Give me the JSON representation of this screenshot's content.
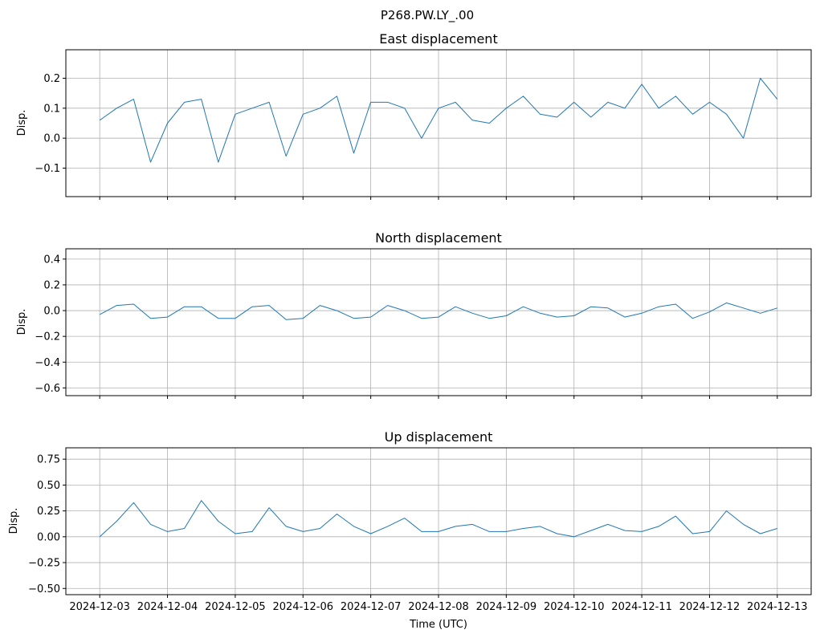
{
  "figure": {
    "suptitle": "P268.PW.LY_.00",
    "xlabel": "Time (UTC)"
  },
  "chart_data": [
    {
      "type": "line",
      "title": "East displacement",
      "ylabel": "Disp.",
      "xlim": [
        "2024-12-02T12:00",
        "2024-12-13T12:00"
      ],
      "ylim": [
        -0.195,
        0.295
      ],
      "yticks": [
        -0.1,
        0.0,
        0.1,
        0.2
      ],
      "ytick_labels": [
        "−0.1",
        "0.0",
        "0.1",
        "0.2"
      ],
      "xtick_labels": [],
      "grid": true,
      "series": [
        {
          "color": "#1f77b4",
          "x": [
            "2024-12-03T00:00",
            "2024-12-03T06:00",
            "2024-12-03T12:00",
            "2024-12-03T18:00",
            "2024-12-04T00:00",
            "2024-12-04T06:00",
            "2024-12-04T12:00",
            "2024-12-04T18:00",
            "2024-12-05T00:00",
            "2024-12-05T06:00",
            "2024-12-05T12:00",
            "2024-12-05T18:00",
            "2024-12-06T00:00",
            "2024-12-06T06:00",
            "2024-12-06T12:00",
            "2024-12-06T18:00",
            "2024-12-07T00:00",
            "2024-12-07T06:00",
            "2024-12-07T12:00",
            "2024-12-07T18:00",
            "2024-12-08T00:00",
            "2024-12-08T06:00",
            "2024-12-08T12:00",
            "2024-12-08T18:00",
            "2024-12-09T00:00",
            "2024-12-09T06:00",
            "2024-12-09T12:00",
            "2024-12-09T18:00",
            "2024-12-10T00:00",
            "2024-12-10T06:00",
            "2024-12-10T12:00",
            "2024-12-10T18:00",
            "2024-12-11T00:00",
            "2024-12-11T06:00",
            "2024-12-11T12:00",
            "2024-12-11T18:00",
            "2024-12-12T00:00",
            "2024-12-12T06:00",
            "2024-12-12T12:00",
            "2024-12-12T18:00",
            "2024-12-13T00:00"
          ],
          "values": [
            0.06,
            0.1,
            0.13,
            -0.08,
            0.05,
            0.12,
            0.13,
            -0.08,
            0.08,
            0.1,
            0.12,
            -0.06,
            0.08,
            0.1,
            0.14,
            -0.05,
            0.12,
            0.12,
            0.1,
            0.0,
            0.1,
            0.12,
            0.06,
            0.05,
            0.1,
            0.14,
            0.08,
            0.07,
            0.12,
            0.07,
            0.12,
            0.1,
            0.18,
            0.1,
            0.14,
            0.08,
            0.12,
            0.08,
            0.0,
            0.2,
            0.13
          ]
        }
      ]
    },
    {
      "type": "line",
      "title": "North displacement",
      "ylabel": "Disp.",
      "xlim": [
        "2024-12-02T12:00",
        "2024-12-13T12:00"
      ],
      "ylim": [
        -0.66,
        0.48
      ],
      "yticks": [
        -0.6,
        -0.4,
        -0.2,
        0.0,
        0.2,
        0.4
      ],
      "ytick_labels": [
        "−0.6",
        "−0.4",
        "−0.2",
        "0.0",
        "0.2",
        "0.4"
      ],
      "xtick_labels": [],
      "grid": true,
      "series": [
        {
          "color": "#1f77b4",
          "x": [
            "2024-12-03T00:00",
            "2024-12-03T06:00",
            "2024-12-03T12:00",
            "2024-12-03T18:00",
            "2024-12-04T00:00",
            "2024-12-04T06:00",
            "2024-12-04T12:00",
            "2024-12-04T18:00",
            "2024-12-05T00:00",
            "2024-12-05T06:00",
            "2024-12-05T12:00",
            "2024-12-05T18:00",
            "2024-12-06T00:00",
            "2024-12-06T06:00",
            "2024-12-06T12:00",
            "2024-12-06T18:00",
            "2024-12-07T00:00",
            "2024-12-07T06:00",
            "2024-12-07T12:00",
            "2024-12-07T18:00",
            "2024-12-08T00:00",
            "2024-12-08T06:00",
            "2024-12-08T12:00",
            "2024-12-08T18:00",
            "2024-12-09T00:00",
            "2024-12-09T06:00",
            "2024-12-09T12:00",
            "2024-12-09T18:00",
            "2024-12-10T00:00",
            "2024-12-10T06:00",
            "2024-12-10T12:00",
            "2024-12-10T18:00",
            "2024-12-11T00:00",
            "2024-12-11T06:00",
            "2024-12-11T12:00",
            "2024-12-11T18:00",
            "2024-12-12T00:00",
            "2024-12-12T06:00",
            "2024-12-12T12:00",
            "2024-12-12T18:00",
            "2024-12-13T00:00"
          ],
          "values": [
            -0.03,
            0.04,
            0.05,
            -0.06,
            -0.05,
            0.03,
            0.03,
            -0.06,
            -0.06,
            0.03,
            0.04,
            -0.07,
            -0.06,
            0.04,
            0.0,
            -0.06,
            -0.05,
            0.04,
            0.0,
            -0.06,
            -0.05,
            0.03,
            -0.02,
            -0.06,
            -0.04,
            0.03,
            -0.02,
            -0.05,
            -0.04,
            0.03,
            0.02,
            -0.05,
            -0.02,
            0.03,
            0.05,
            -0.06,
            -0.01,
            0.06,
            0.02,
            -0.02,
            0.02
          ]
        }
      ]
    },
    {
      "type": "line",
      "title": "Up displacement",
      "ylabel": "Disp.",
      "xlim": [
        "2024-12-02T12:00",
        "2024-12-13T12:00"
      ],
      "ylim": [
        -0.56,
        0.86
      ],
      "yticks": [
        -0.5,
        -0.25,
        0.0,
        0.25,
        0.5,
        0.75
      ],
      "ytick_labels": [
        "−0.50",
        "−0.25",
        "0.00",
        "0.25",
        "0.50",
        "0.75"
      ],
      "xtick_labels": [
        "2024-12-03",
        "2024-12-04",
        "2024-12-05",
        "2024-12-06",
        "2024-12-07",
        "2024-12-08",
        "2024-12-09",
        "2024-12-10",
        "2024-12-11",
        "2024-12-12",
        "2024-12-13"
      ],
      "grid": true,
      "series": [
        {
          "color": "#1f77b4",
          "x": [
            "2024-12-03T00:00",
            "2024-12-03T06:00",
            "2024-12-03T12:00",
            "2024-12-03T18:00",
            "2024-12-04T00:00",
            "2024-12-04T06:00",
            "2024-12-04T12:00",
            "2024-12-04T18:00",
            "2024-12-05T00:00",
            "2024-12-05T06:00",
            "2024-12-05T12:00",
            "2024-12-05T18:00",
            "2024-12-06T00:00",
            "2024-12-06T06:00",
            "2024-12-06T12:00",
            "2024-12-06T18:00",
            "2024-12-07T00:00",
            "2024-12-07T06:00",
            "2024-12-07T12:00",
            "2024-12-07T18:00",
            "2024-12-08T00:00",
            "2024-12-08T06:00",
            "2024-12-08T12:00",
            "2024-12-08T18:00",
            "2024-12-09T00:00",
            "2024-12-09T06:00",
            "2024-12-09T12:00",
            "2024-12-09T18:00",
            "2024-12-10T00:00",
            "2024-12-10T06:00",
            "2024-12-10T12:00",
            "2024-12-10T18:00",
            "2024-12-11T00:00",
            "2024-12-11T06:00",
            "2024-12-11T12:00",
            "2024-12-11T18:00",
            "2024-12-12T00:00",
            "2024-12-12T06:00",
            "2024-12-12T12:00",
            "2024-12-12T18:00",
            "2024-12-13T00:00"
          ],
          "values": [
            0.0,
            0.15,
            0.33,
            0.12,
            0.05,
            0.08,
            0.35,
            0.15,
            0.03,
            0.05,
            0.28,
            0.1,
            0.05,
            0.08,
            0.22,
            0.1,
            0.03,
            0.1,
            0.18,
            0.05,
            0.05,
            0.1,
            0.12,
            0.05,
            0.05,
            0.08,
            0.1,
            0.03,
            0.0,
            0.06,
            0.12,
            0.06,
            0.05,
            0.1,
            0.2,
            0.03,
            0.05,
            0.25,
            0.12,
            0.03,
            0.08
          ]
        }
      ]
    }
  ]
}
